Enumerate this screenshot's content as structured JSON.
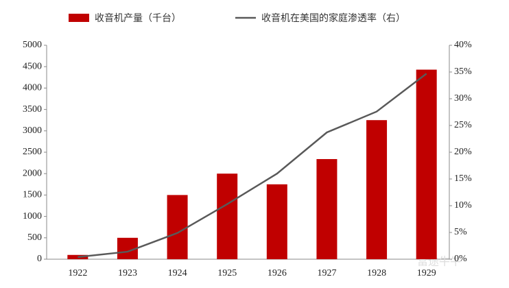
{
  "chart_data": {
    "type": "bar-line",
    "categories": [
      "1922",
      "1923",
      "1924",
      "1925",
      "1926",
      "1927",
      "1928",
      "1929"
    ],
    "series": [
      {
        "name": "收音机产量（千台）",
        "type": "bar",
        "color": "#c00000",
        "axis": "y",
        "values": [
          100,
          500,
          1500,
          2000,
          1750,
          2340,
          3250,
          4430
        ]
      },
      {
        "name": "收音机在美国的家庭渗透率（右）",
        "type": "line",
        "color": "#595959",
        "axis": "y2",
        "values": [
          0.4,
          1.4,
          4.9,
          10.3,
          16,
          23.7,
          27.6,
          34.7
        ]
      }
    ],
    "ylim": [
      0,
      5000
    ],
    "yticks": [
      0,
      500,
      1000,
      1500,
      2000,
      2500,
      3000,
      3500,
      4000,
      4500,
      5000
    ],
    "y2lim": [
      0,
      40
    ],
    "y2ticks": [
      {
        "value": 0,
        "label": "0%"
      },
      {
        "value": 5,
        "label": "5%"
      },
      {
        "value": 10,
        "label": "10%"
      },
      {
        "value": 15,
        "label": "15%"
      },
      {
        "value": 20,
        "label": "20%"
      },
      {
        "value": 25,
        "label": "25%"
      },
      {
        "value": 30,
        "label": "30%"
      },
      {
        "value": 35,
        "label": "35%"
      },
      {
        "value": 40,
        "label": "40%"
      }
    ],
    "watermark": "富途牛牛"
  }
}
